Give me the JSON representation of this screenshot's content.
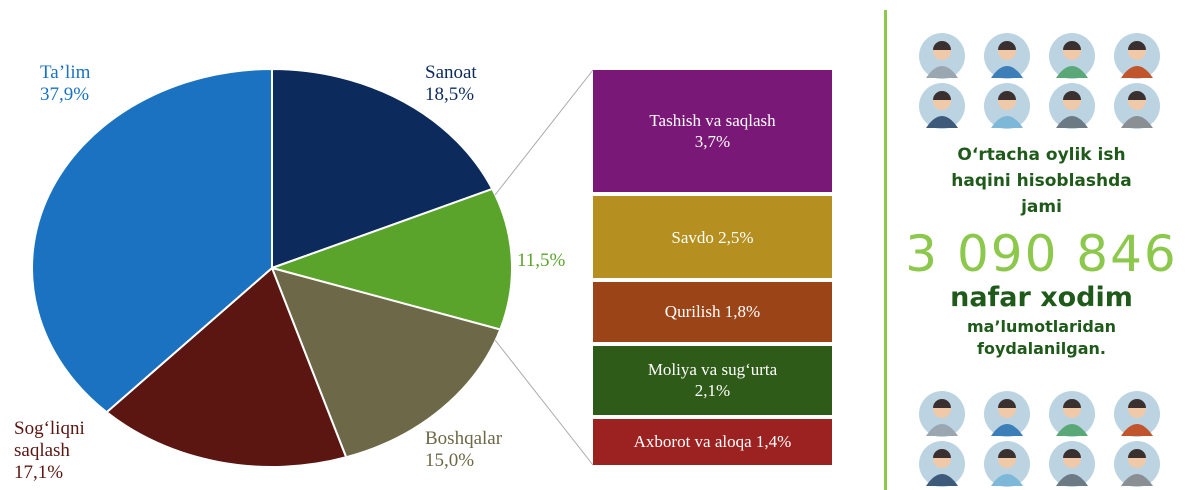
{
  "chart_data": {
    "type": "pie",
    "categories": [
      "Sanoat",
      null,
      "Boshqalar",
      "Sog‘liqni saqlash",
      "Ta’lim"
    ],
    "values": [
      18.5,
      11.5,
      15.0,
      17.1,
      37.9
    ],
    "value_labels": [
      "18,5%",
      "11,5%",
      "15,0%",
      "17,1%",
      "37,9%"
    ],
    "colors": [
      "#0c2a5c",
      "#5ba42b",
      "#6d6847",
      "#5b1611",
      "#1a72c0"
    ],
    "breakdown": {
      "type": "stacked-bar",
      "categories": [
        "Tashish va saqlash",
        "Savdo",
        "Qurilish",
        "Moliya va sug‘urta",
        "Axborot va aloqa"
      ],
      "values": [
        3.7,
        2.5,
        1.8,
        2.1,
        1.4
      ],
      "value_labels": [
        "3,7%",
        "2,5%",
        "1,8%",
        "2,1%",
        "1,4%"
      ],
      "colors": [
        "#7a1877",
        "#b58f1f",
        "#9b4417",
        "#2f5b19",
        "#9b2220"
      ]
    }
  },
  "info_panel": {
    "intro": "O‘rtacha oylik ish haqini hisoblashda jami",
    "headline": "3 090 846",
    "subhead": "nafar xodim",
    "outro": "ma’lumotlaridan foydalanilgan."
  }
}
